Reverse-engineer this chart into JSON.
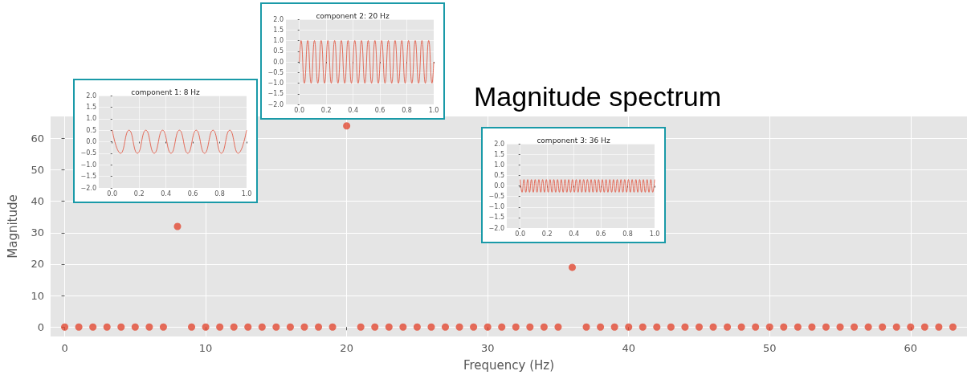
{
  "chart_data": [
    {
      "type": "scatter",
      "title": "Magnitude spectrum",
      "xlabel": "Frequency (Hz)",
      "ylabel": "Magnitude",
      "x": [
        0,
        1,
        2,
        3,
        4,
        5,
        6,
        7,
        8,
        9,
        10,
        11,
        12,
        13,
        14,
        15,
        16,
        17,
        18,
        19,
        20,
        21,
        22,
        23,
        24,
        25,
        26,
        27,
        28,
        29,
        30,
        31,
        32,
        33,
        34,
        35,
        36,
        37,
        38,
        39,
        40,
        41,
        42,
        43,
        44,
        45,
        46,
        47,
        48,
        49,
        50,
        51,
        52,
        53,
        54,
        55,
        56,
        57,
        58,
        59,
        60,
        61,
        62,
        63
      ],
      "series": [
        {
          "color": "#e24a33",
          "values": [
            0,
            0,
            0,
            0,
            0,
            0,
            0,
            0,
            32,
            0,
            0,
            0,
            0,
            0,
            0,
            0,
            0,
            0,
            0,
            0,
            64,
            0,
            0,
            0,
            0,
            0,
            0,
            0,
            0,
            0,
            0,
            0,
            0,
            0,
            0,
            0,
            19,
            0,
            0,
            0,
            0,
            0,
            0,
            0,
            0,
            0,
            0,
            0,
            0,
            0,
            0,
            0,
            0,
            0,
            0,
            0,
            0,
            0,
            0,
            0,
            0,
            0,
            0,
            0
          ]
        }
      ],
      "xlim": [
        -1,
        64
      ],
      "xticks": [
        0,
        10,
        20,
        30,
        40,
        50,
        60
      ],
      "ylim": [
        -3,
        67
      ],
      "yticks": [
        0,
        10,
        20,
        30,
        40,
        50,
        60
      ],
      "grid": true,
      "marker": "circle"
    },
    {
      "type": "line",
      "title": "component 1: 8 Hz",
      "x": [
        0,
        0.0625,
        0.125,
        0.1875,
        0.25,
        0.3125,
        0.375,
        0.4375,
        0.5,
        0.5625,
        0.625,
        0.6875,
        0.75,
        0.8125,
        0.875,
        0.9375,
        1
      ],
      "series": [
        {
          "color": "#e24a33",
          "values": [
            0.5,
            -0.5,
            0.5,
            -0.5,
            0.5,
            -0.5,
            0.5,
            -0.5,
            0.5,
            -0.5,
            0.5,
            -0.5,
            0.5,
            -0.5,
            0.5,
            -0.5,
            0.5
          ]
        }
      ],
      "xlim": [
        -0.1,
        1
      ],
      "xticks": [
        {
          "value": 0,
          "label": "0.0"
        },
        {
          "value": 0.2,
          "label": "0.2"
        },
        {
          "value": 0.4,
          "label": "0.4"
        },
        {
          "value": 0.6,
          "label": "0.6"
        },
        {
          "value": 0.8,
          "label": "0.8"
        },
        {
          "value": 1,
          "label": "1.0"
        }
      ],
      "ylim": [
        -2,
        2
      ],
      "yticks": [
        {
          "value": -2,
          "label": "−2.0"
        },
        {
          "value": -1.5,
          "label": "−1.5"
        },
        {
          "value": -1,
          "label": "−1.0"
        },
        {
          "value": -0.5,
          "label": "−0.5"
        },
        {
          "value": 0,
          "label": "0.0"
        },
        {
          "value": 0.5,
          "label": "0.5"
        },
        {
          "value": 1,
          "label": "1.0"
        },
        {
          "value": 1.5,
          "label": "1.5"
        },
        {
          "value": 2,
          "label": "2.0"
        }
      ],
      "grid": true,
      "marker": "none"
    },
    {
      "type": "line",
      "title": "component 2: 20 Hz",
      "x": [
        0,
        0.0125,
        0.0375,
        0.0625,
        0.0875,
        0.1125,
        0.1375,
        0.1625,
        0.1875,
        0.2125,
        0.2375,
        0.2625,
        0.2875,
        0.3125,
        0.3375,
        0.3625,
        0.3875,
        0.4125,
        0.4375,
        0.4625,
        0.4875,
        0.5125,
        0.5375,
        0.5625,
        0.5875,
        0.6125,
        0.6375,
        0.6625,
        0.6875,
        0.7125,
        0.7375,
        0.7625,
        0.7875,
        0.8125,
        0.8375,
        0.8625,
        0.8875,
        0.9125,
        0.9375,
        0.9625,
        0.9875,
        1
      ],
      "series": [
        {
          "color": "#e24a33",
          "values": [
            0,
            1,
            -1,
            1,
            -1,
            1,
            -1,
            1,
            -1,
            1,
            -1,
            1,
            -1,
            1,
            -1,
            1,
            -1,
            1,
            -1,
            1,
            -1,
            1,
            -1,
            1,
            -1,
            1,
            -1,
            1,
            -1,
            1,
            -1,
            1,
            -1,
            1,
            -1,
            1,
            -1,
            1,
            -1,
            1,
            -1,
            0
          ]
        }
      ],
      "xlim": [
        -0.1,
        1
      ],
      "xticks": [
        {
          "value": 0,
          "label": "0.0"
        },
        {
          "value": 0.2,
          "label": "0.2"
        },
        {
          "value": 0.4,
          "label": "0.4"
        },
        {
          "value": 0.6,
          "label": "0.6"
        },
        {
          "value": 0.8,
          "label": "0.8"
        },
        {
          "value": 1,
          "label": "1.0"
        }
      ],
      "ylim": [
        -2,
        2
      ],
      "yticks": [
        {
          "value": -2,
          "label": "−2.0"
        },
        {
          "value": -1.5,
          "label": "−1.5"
        },
        {
          "value": -1,
          "label": "−1.0"
        },
        {
          "value": -0.5,
          "label": "−0.5"
        },
        {
          "value": 0,
          "label": "0.0"
        },
        {
          "value": 0.5,
          "label": "0.5"
        },
        {
          "value": 1,
          "label": "1.0"
        },
        {
          "value": 1.5,
          "label": "1.5"
        },
        {
          "value": 2,
          "label": "2.0"
        }
      ],
      "grid": true,
      "marker": "none"
    },
    {
      "type": "line",
      "title": "component 3: 36 Hz",
      "x": [
        0,
        0.0139,
        0.0278,
        0.0417,
        0.0556,
        0.0694,
        0.0833,
        0.0972,
        0.1111,
        0.125,
        0.1389,
        0.1528,
        0.1667,
        0.1806,
        0.1944,
        0.2083,
        0.2222,
        0.2361,
        0.25,
        0.2639,
        0.2778,
        0.2917,
        0.3056,
        0.3194,
        0.3333,
        0.3472,
        0.3611,
        0.375,
        0.3889,
        0.4028,
        0.4167,
        0.4306,
        0.4444,
        0.4583,
        0.4722,
        0.4861,
        0.5,
        0.5139,
        0.5278,
        0.5417,
        0.5556,
        0.5694,
        0.5833,
        0.5972,
        0.6111,
        0.625,
        0.6389,
        0.6528,
        0.6667,
        0.6806,
        0.6944,
        0.7083,
        0.7222,
        0.7361,
        0.75,
        0.7639,
        0.7778,
        0.7917,
        0.8056,
        0.8194,
        0.8333,
        0.8472,
        0.8611,
        0.875,
        0.8889,
        0.9028,
        0.9167,
        0.9306,
        0.9444,
        0.9583,
        0.9722,
        0.9861,
        1
      ],
      "series": [
        {
          "color": "#e24a33",
          "values": [
            0.3,
            -0.3,
            0.3,
            -0.3,
            0.3,
            -0.3,
            0.3,
            -0.3,
            0.3,
            -0.3,
            0.3,
            -0.3,
            0.3,
            -0.3,
            0.3,
            -0.3,
            0.3,
            -0.3,
            0.3,
            -0.3,
            0.3,
            -0.3,
            0.3,
            -0.3,
            0.3,
            -0.3,
            0.3,
            -0.3,
            0.3,
            -0.3,
            0.3,
            -0.3,
            0.3,
            -0.3,
            0.3,
            -0.3,
            0.3,
            -0.3,
            0.3,
            -0.3,
            0.3,
            -0.3,
            0.3,
            -0.3,
            0.3,
            -0.3,
            0.3,
            -0.3,
            0.3,
            -0.3,
            0.3,
            -0.3,
            0.3,
            -0.3,
            0.3,
            -0.3,
            0.3,
            -0.3,
            0.3,
            -0.3,
            0.3,
            -0.3,
            0.3,
            -0.3,
            0.3,
            -0.3,
            0.3,
            -0.3,
            0.3,
            -0.3,
            0.3,
            -0.3,
            0.3
          ]
        }
      ],
      "xlim": [
        -0.1,
        1
      ],
      "xticks": [
        {
          "value": 0,
          "label": "0.0"
        },
        {
          "value": 0.2,
          "label": "0.2"
        },
        {
          "value": 0.4,
          "label": "0.4"
        },
        {
          "value": 0.6,
          "label": "0.6"
        },
        {
          "value": 0.8,
          "label": "0.8"
        },
        {
          "value": 1,
          "label": "1.0"
        }
      ],
      "ylim": [
        -2,
        2
      ],
      "yticks": [
        {
          "value": -2,
          "label": "−2.0"
        },
        {
          "value": -1.5,
          "label": "−1.5"
        },
        {
          "value": -1,
          "label": "−1.0"
        },
        {
          "value": -0.5,
          "label": "−0.5"
        },
        {
          "value": 0,
          "label": "0.0"
        },
        {
          "value": 0.5,
          "label": "0.5"
        },
        {
          "value": 1,
          "label": "1.0"
        },
        {
          "value": 1.5,
          "label": "1.5"
        },
        {
          "value": 2,
          "label": "2.0"
        }
      ],
      "grid": true,
      "marker": "none"
    }
  ]
}
